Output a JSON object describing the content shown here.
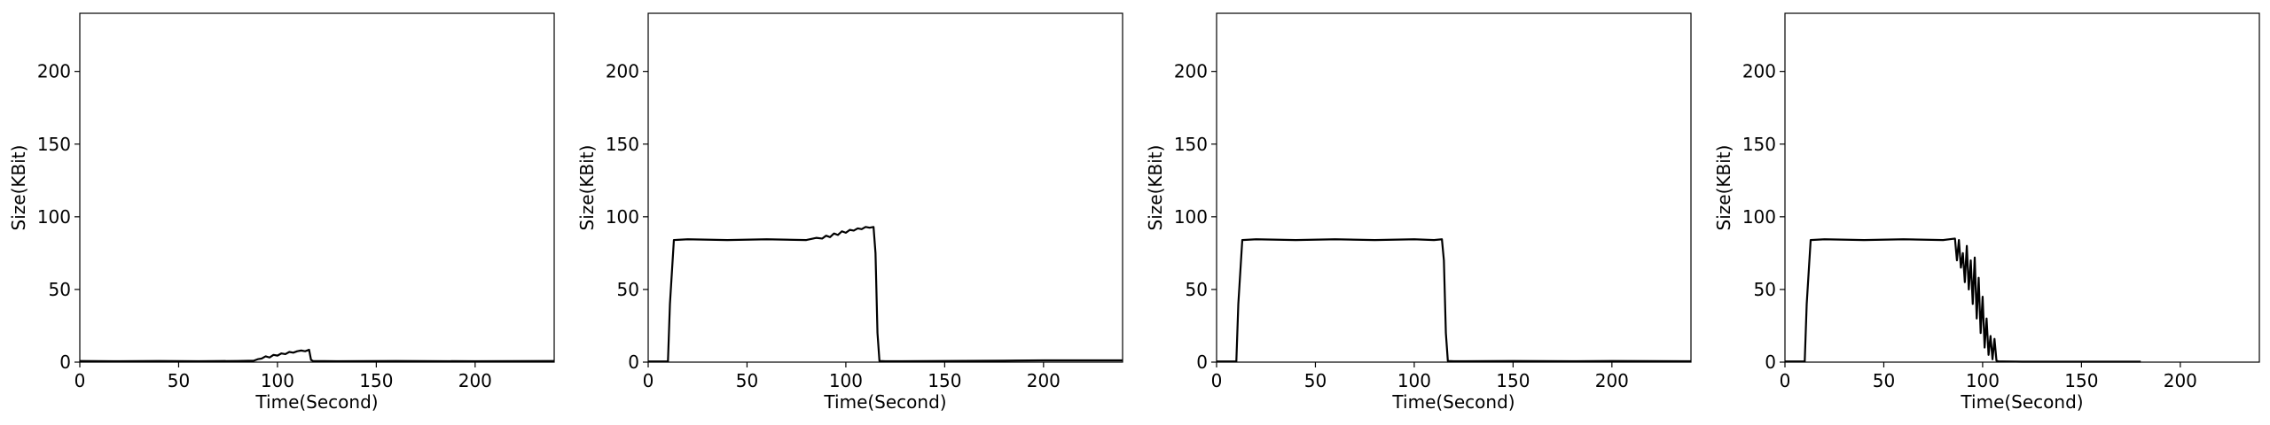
{
  "chart_data": [
    {
      "type": "line",
      "xlabel": "Time(Second)",
      "ylabel": "Size(KBit)",
      "xlim": [
        0,
        240
      ],
      "ylim": [
        0,
        240
      ],
      "xticks": [
        0,
        50,
        100,
        150,
        200
      ],
      "yticks": [
        0,
        50,
        100,
        150,
        200
      ],
      "grid": false,
      "series": [
        {
          "color": "#000000",
          "x": [
            0,
            20,
            40,
            60,
            80,
            88,
            90,
            92,
            94,
            96,
            98,
            100,
            102,
            104,
            106,
            108,
            110,
            112,
            114,
            116,
            117,
            118,
            130,
            160,
            200,
            240
          ],
          "y": [
            0.8,
            0.6,
            0.8,
            0.6,
            0.8,
            1.0,
            2.0,
            2.5,
            4.0,
            3.2,
            5.0,
            4.5,
            6.0,
            5.5,
            7.0,
            6.5,
            7.5,
            8.0,
            7.5,
            8.5,
            1.5,
            0.8,
            0.6,
            0.8,
            0.6,
            0.8
          ]
        }
      ]
    },
    {
      "type": "line",
      "xlabel": "Time(Second)",
      "ylabel": "Size(KBit)",
      "xlim": [
        0,
        240
      ],
      "ylim": [
        0,
        240
      ],
      "xticks": [
        0,
        50,
        100,
        150,
        200
      ],
      "yticks": [
        0,
        50,
        100,
        150,
        200
      ],
      "grid": false,
      "series": [
        {
          "color": "#000000",
          "x": [
            0,
            5,
            10,
            11,
            13,
            20,
            40,
            60,
            80,
            85,
            88,
            90,
            92,
            94,
            96,
            98,
            100,
            102,
            104,
            106,
            108,
            110,
            112,
            114,
            115,
            116,
            117,
            120,
            150,
            180,
            200,
            240
          ],
          "y": [
            0.5,
            0.5,
            0.5,
            40,
            84,
            84.5,
            84,
            84.5,
            84,
            85.5,
            85,
            87,
            86,
            88.5,
            87.5,
            90,
            89,
            91,
            90.5,
            92,
            91.5,
            93,
            92.5,
            93,
            75,
            20,
            0.8,
            0.6,
            0.8,
            1.0,
            1.2,
            1.2
          ]
        }
      ]
    },
    {
      "type": "line",
      "xlabel": "Time(Second)",
      "ylabel": "Size(KBit)",
      "xlim": [
        0,
        240
      ],
      "ylim": [
        0,
        240
      ],
      "xticks": [
        0,
        50,
        100,
        150,
        200
      ],
      "yticks": [
        0,
        50,
        100,
        150,
        200
      ],
      "grid": false,
      "series": [
        {
          "color": "#000000",
          "x": [
            0,
            5,
            10,
            11,
            13,
            20,
            40,
            60,
            80,
            100,
            110,
            114,
            115,
            116,
            117,
            120,
            150,
            180,
            200,
            240
          ],
          "y": [
            0.5,
            0.5,
            0.5,
            40,
            84,
            84.5,
            84,
            84.5,
            84,
            84.5,
            84,
            84.5,
            70,
            20,
            0.8,
            0.6,
            0.8,
            0.6,
            0.8,
            0.6
          ]
        }
      ]
    },
    {
      "type": "line",
      "xlabel": "Time(Second)",
      "ylabel": "Size(KBit)",
      "xlim": [
        0,
        240
      ],
      "ylim": [
        0,
        240
      ],
      "xticks": [
        0,
        50,
        100,
        150,
        200
      ],
      "yticks": [
        0,
        50,
        100,
        150,
        200
      ],
      "grid": false,
      "series": [
        {
          "color": "#000000",
          "x": [
            0,
            5,
            10,
            11,
            13,
            20,
            40,
            60,
            80,
            86,
            87,
            88,
            89,
            90,
            91,
            92,
            93,
            94,
            95,
            96,
            97,
            98,
            99,
            100,
            101,
            102,
            103,
            104,
            105,
            106,
            107,
            108,
            110,
            120,
            150,
            180
          ],
          "y": [
            0.5,
            0.5,
            0.5,
            40,
            84,
            84.5,
            84,
            84.5,
            84,
            85,
            70,
            84,
            65,
            75,
            55,
            80,
            50,
            70,
            40,
            72,
            30,
            58,
            20,
            45,
            10,
            30,
            5,
            18,
            2,
            16,
            1,
            0.5,
            0.5,
            0.3,
            0.3,
            0.3
          ]
        }
      ]
    }
  ]
}
